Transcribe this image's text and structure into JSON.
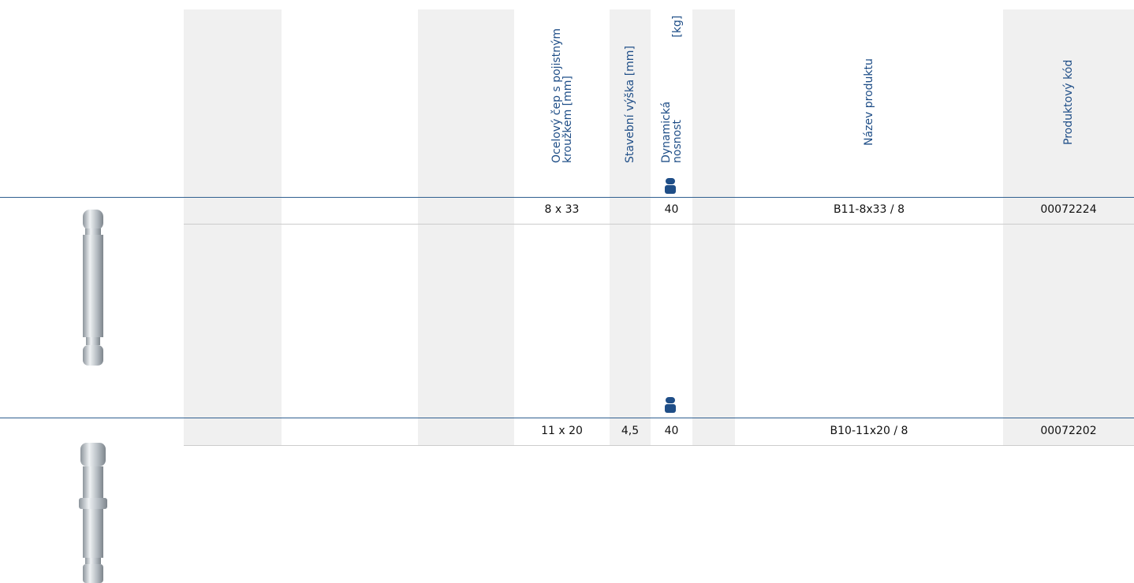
{
  "table": {
    "headers": [
      "Ocelový čep s pojistným kroužkem [mm]",
      "Stavební výška [mm]",
      "Dynamická nosnost [kg]",
      "Název produktu",
      "Produktový kód"
    ],
    "rows": [
      {
        "pin": "8 x 33",
        "load": "40",
        "name": "B11-8x33 / 8",
        "code": "00072224"
      },
      {
        "pin": "11 x 20",
        "height": "4,5",
        "load": "40",
        "name": "B10-11x20 / 8",
        "code": "00072202"
      }
    ]
  }
}
